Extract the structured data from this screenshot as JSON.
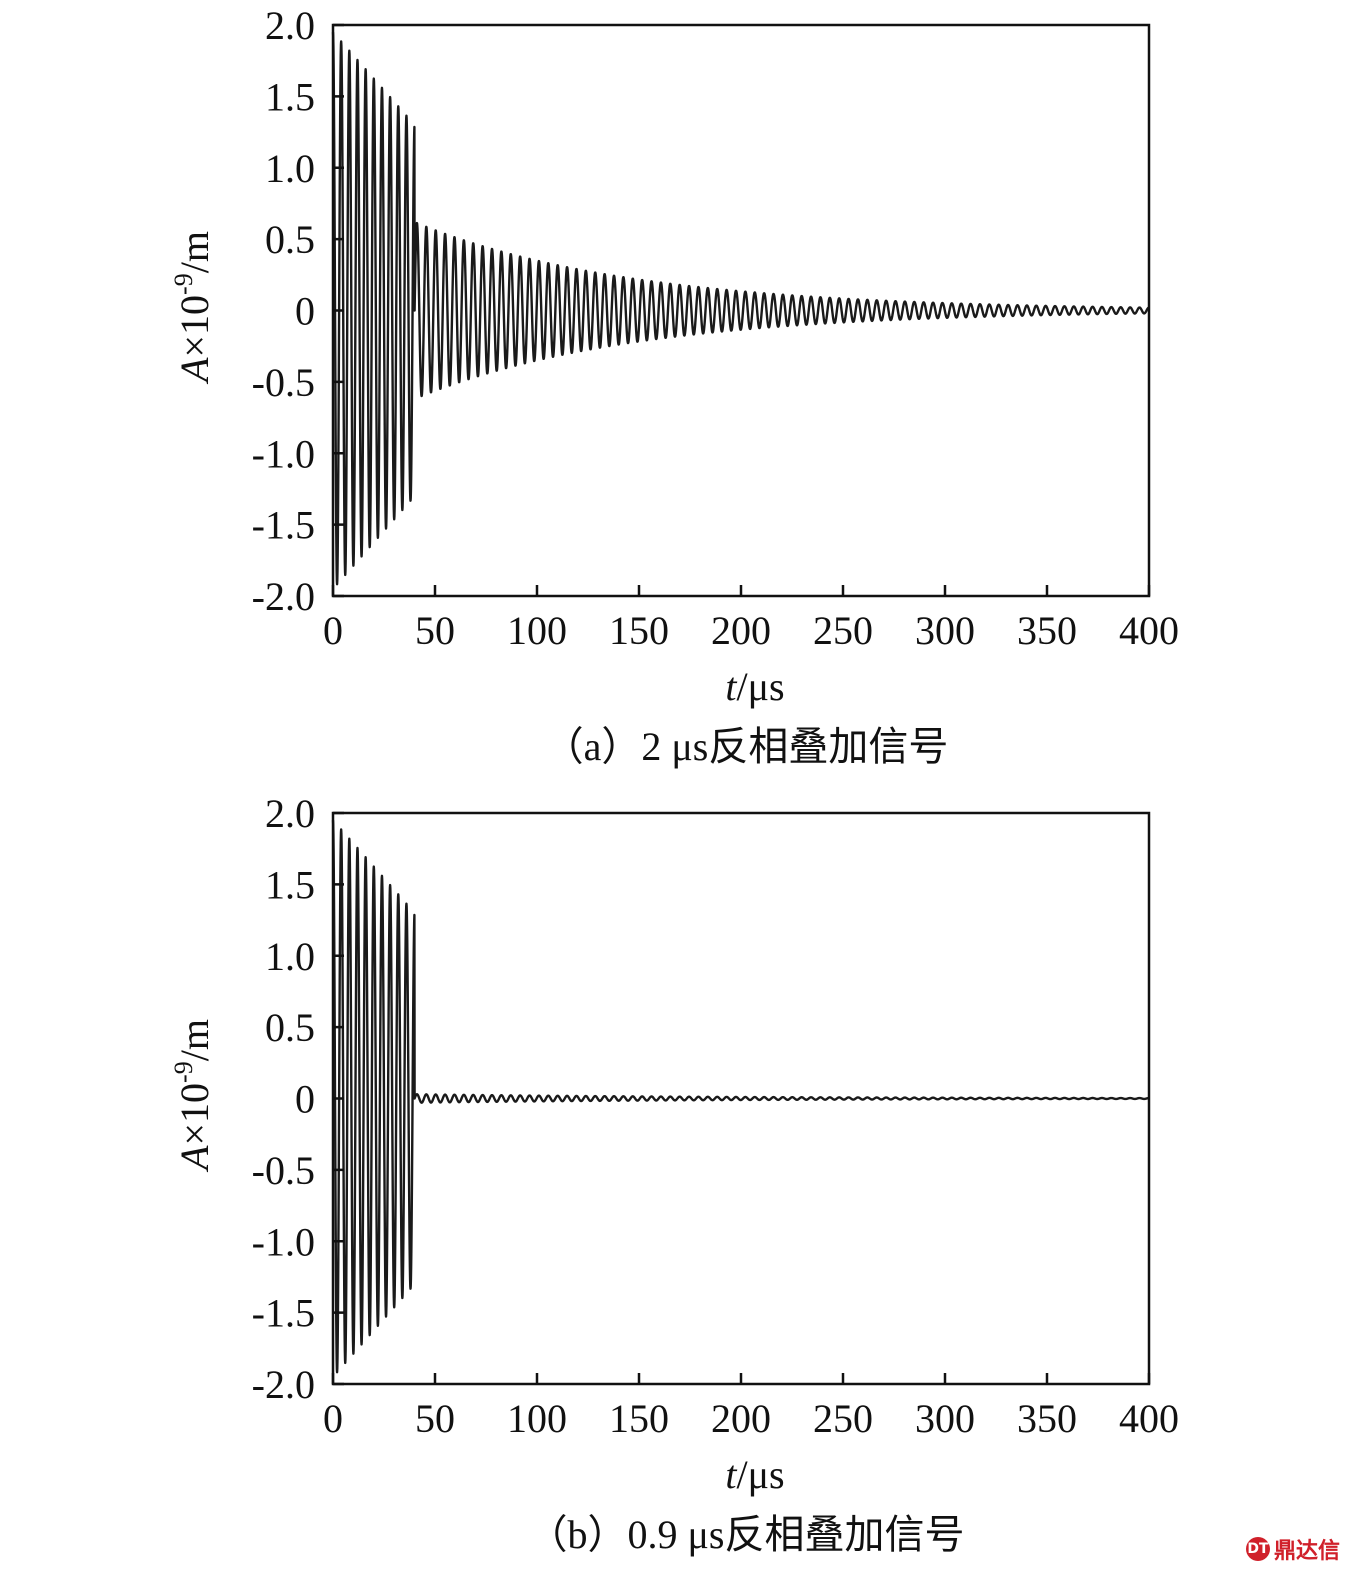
{
  "chart_data": [
    {
      "type": "line",
      "caption": "（a）2 μs反相叠加信号",
      "xlabel": {
        "italic": "t",
        "rest": "/μs"
      },
      "ylabel": {
        "italic": "A",
        "rest": "×10",
        "sup": "-9",
        "tail": "/m"
      },
      "xlim": [
        0,
        400
      ],
      "ylim": [
        -2.0,
        2.0
      ],
      "xticks": [
        0,
        50,
        100,
        150,
        200,
        250,
        300,
        350,
        400
      ],
      "xtick_labels": [
        "0",
        "50",
        "100",
        "150",
        "200",
        "250",
        "300",
        "350",
        "400"
      ],
      "yticks": [
        2.0,
        1.5,
        1.0,
        0.5,
        0,
        -0.5,
        -1.0,
        -1.5,
        -2.0
      ],
      "ytick_labels": [
        "2.0",
        "1.5",
        "1.0",
        "0.5",
        "0",
        "-0.5",
        "-1.0",
        "-1.5",
        "-2.0"
      ],
      "grid": false,
      "signal": {
        "drive_end": 40,
        "drive_start_amplitude": 1.95,
        "drive_end_amplitude": 1.3,
        "drive_period": 4,
        "ringdown_start_amplitude": 0.62,
        "ringdown_end_amplitude": 0.02,
        "ringdown_period": 4.6,
        "ringdown_end": 400
      }
    },
    {
      "type": "line",
      "caption": "（b）0.9 μs反相叠加信号",
      "xlabel": {
        "italic": "t",
        "rest": "/μs"
      },
      "ylabel": {
        "italic": "A",
        "rest": "×10",
        "sup": "-9",
        "tail": "/m"
      },
      "xlim": [
        0,
        400
      ],
      "ylim": [
        -2.0,
        2.0
      ],
      "xticks": [
        0,
        50,
        100,
        150,
        200,
        250,
        300,
        350,
        400
      ],
      "xtick_labels": [
        "0",
        "50",
        "100",
        "150",
        "200",
        "250",
        "300",
        "350",
        "400"
      ],
      "yticks": [
        2.0,
        1.5,
        1.0,
        0.5,
        0,
        -0.5,
        -1.0,
        -1.5,
        -2.0
      ],
      "ytick_labels": [
        "2.0",
        "1.5",
        "1.0",
        "0.5",
        "0",
        "-0.5",
        "-1.0",
        "-1.5",
        "-2.0"
      ],
      "grid": false,
      "signal": {
        "drive_end": 40,
        "drive_start_amplitude": 1.95,
        "drive_end_amplitude": 1.3,
        "drive_period": 4,
        "ringdown_start_amplitude": 0.03,
        "ringdown_end_amplitude": 0.003,
        "ringdown_period": 4.6,
        "ringdown_end": 400
      }
    }
  ],
  "watermark": {
    "logo_text": "DT",
    "text": "鼎达信"
  },
  "colors": {
    "line": "#1a1a1a",
    "axes": "#111111",
    "watermark": "#d0202a"
  }
}
